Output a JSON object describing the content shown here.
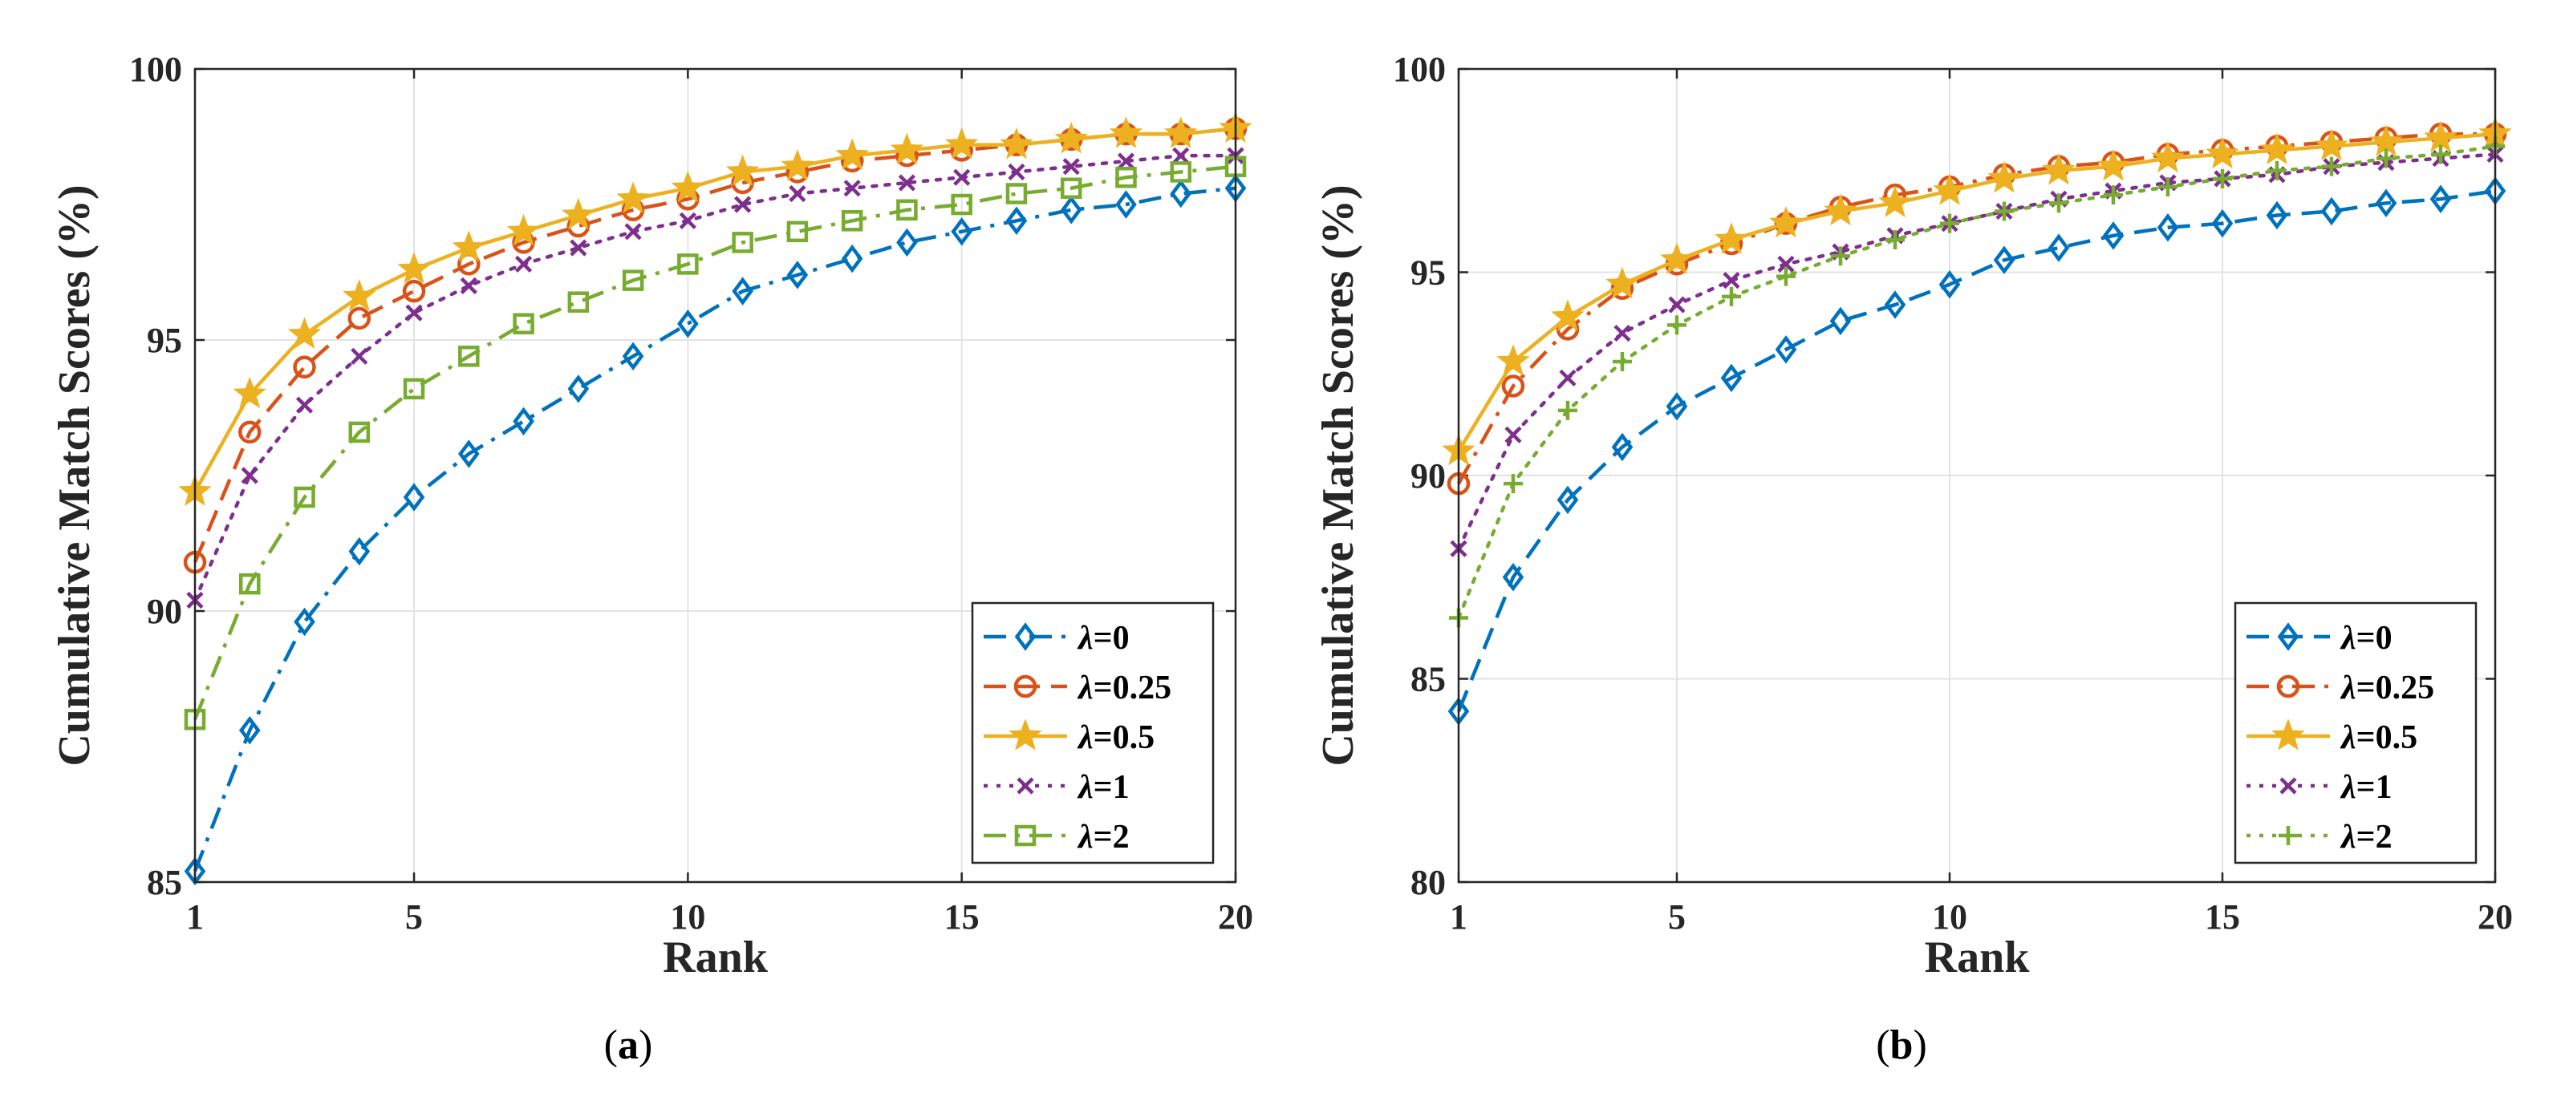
{
  "chart_data": [
    {
      "type": "line",
      "caption_letter": "a",
      "xlabel": "Rank",
      "ylabel": "Cumulative Match Scores (%)",
      "xlim": [
        1,
        20
      ],
      "ylim": [
        85,
        100
      ],
      "xticks": [
        1,
        5,
        10,
        15,
        20
      ],
      "yticks": [
        85,
        90,
        95,
        100
      ],
      "xtick_labels": [
        "1",
        "5",
        "10",
        "15",
        "20"
      ],
      "ytick_labels": [
        "85",
        "90",
        "95",
        "100"
      ],
      "grid": true,
      "legend_position": "bottom-right",
      "x": [
        1,
        2,
        3,
        4,
        5,
        6,
        7,
        8,
        9,
        10,
        11,
        12,
        13,
        14,
        15,
        16,
        17,
        18,
        19,
        20
      ],
      "series": [
        {
          "name": "λ=0",
          "symbol": "λ",
          "label_suffix": "=0",
          "color": "#0072BD",
          "dash": "dashdot",
          "marker": "diamond",
          "values": [
            85.2,
            87.8,
            89.8,
            91.1,
            92.1,
            92.9,
            93.5,
            94.1,
            94.7,
            95.3,
            95.9,
            96.2,
            96.5,
            96.8,
            97.0,
            97.2,
            97.4,
            97.5,
            97.7,
            97.8
          ]
        },
        {
          "name": "λ=0.25",
          "symbol": "λ",
          "label_suffix": "=0.25",
          "color": "#D95319",
          "dash": "dashed",
          "marker": "circle",
          "values": [
            90.9,
            93.3,
            94.5,
            95.4,
            95.9,
            96.4,
            96.8,
            97.1,
            97.4,
            97.6,
            97.9,
            98.1,
            98.3,
            98.4,
            98.5,
            98.6,
            98.7,
            98.8,
            98.8,
            98.9
          ]
        },
        {
          "name": "λ=0.5",
          "symbol": "λ",
          "label_suffix": "=0.5",
          "color": "#EDB120",
          "dash": "solid",
          "marker": "star",
          "values": [
            92.2,
            94.0,
            95.1,
            95.8,
            96.3,
            96.7,
            97.0,
            97.3,
            97.6,
            97.8,
            98.1,
            98.2,
            98.4,
            98.5,
            98.6,
            98.6,
            98.7,
            98.8,
            98.8,
            98.9
          ]
        },
        {
          "name": "λ=1",
          "symbol": "λ",
          "label_suffix": "=1",
          "color": "#7E2F8E",
          "dash": "dotted",
          "marker": "x",
          "values": [
            90.2,
            92.5,
            93.8,
            94.7,
            95.5,
            96.0,
            96.4,
            96.7,
            97.0,
            97.2,
            97.5,
            97.7,
            97.8,
            97.9,
            98.0,
            98.1,
            98.2,
            98.3,
            98.4,
            98.4
          ]
        },
        {
          "name": "λ=2",
          "symbol": "λ",
          "label_suffix": "=2",
          "color": "#77AC30",
          "dash": "dashdot",
          "marker": "square",
          "values": [
            88.0,
            90.5,
            92.1,
            93.3,
            94.1,
            94.7,
            95.3,
            95.7,
            96.1,
            96.4,
            96.8,
            97.0,
            97.2,
            97.4,
            97.5,
            97.7,
            97.8,
            98.0,
            98.1,
            98.2
          ]
        }
      ]
    },
    {
      "type": "line",
      "caption_letter": "b",
      "xlabel": "Rank",
      "ylabel": "Cumulative Match Scores (%)",
      "xlim": [
        1,
        20
      ],
      "ylim": [
        80,
        100
      ],
      "xticks": [
        1,
        5,
        10,
        15,
        20
      ],
      "yticks": [
        80,
        85,
        90,
        95,
        100
      ],
      "xtick_labels": [
        "1",
        "5",
        "10",
        "15",
        "20"
      ],
      "ytick_labels": [
        "80",
        "85",
        "90",
        "95",
        "100"
      ],
      "grid": true,
      "legend_position": "bottom-right",
      "x": [
        1,
        2,
        3,
        4,
        5,
        6,
        7,
        8,
        9,
        10,
        11,
        12,
        13,
        14,
        15,
        16,
        17,
        18,
        19,
        20
      ],
      "series": [
        {
          "name": "λ=0",
          "symbol": "λ",
          "label_suffix": "=0",
          "color": "#0072BD",
          "dash": "dashed",
          "marker": "diamond",
          "values": [
            84.2,
            87.5,
            89.4,
            90.7,
            91.7,
            92.4,
            93.1,
            93.8,
            94.2,
            94.7,
            95.3,
            95.6,
            95.9,
            96.1,
            96.2,
            96.4,
            96.5,
            96.7,
            96.8,
            97.0
          ]
        },
        {
          "name": "λ=0.25",
          "symbol": "λ",
          "label_suffix": "=0.25",
          "color": "#D95319",
          "dash": "dashdot",
          "marker": "circle",
          "values": [
            89.8,
            92.2,
            93.6,
            94.6,
            95.2,
            95.7,
            96.2,
            96.6,
            96.9,
            97.1,
            97.4,
            97.6,
            97.7,
            97.9,
            98.0,
            98.1,
            98.2,
            98.3,
            98.4,
            98.4
          ]
        },
        {
          "name": "λ=0.5",
          "symbol": "λ",
          "label_suffix": "=0.5",
          "color": "#EDB120",
          "dash": "solid",
          "marker": "star",
          "values": [
            90.6,
            92.8,
            93.9,
            94.7,
            95.3,
            95.8,
            96.2,
            96.5,
            96.7,
            97.0,
            97.3,
            97.5,
            97.6,
            97.8,
            97.9,
            98.0,
            98.1,
            98.2,
            98.3,
            98.4
          ]
        },
        {
          "name": "λ=1",
          "symbol": "λ",
          "label_suffix": "=1",
          "color": "#7E2F8E",
          "dash": "dotted",
          "marker": "x",
          "values": [
            88.2,
            91.0,
            92.4,
            93.5,
            94.2,
            94.8,
            95.2,
            95.5,
            95.9,
            96.2,
            96.5,
            96.8,
            97.0,
            97.2,
            97.3,
            97.4,
            97.6,
            97.7,
            97.8,
            97.9
          ]
        },
        {
          "name": "λ=2",
          "symbol": "λ",
          "label_suffix": "=2",
          "color": "#77AC30",
          "dash": "dotted",
          "marker": "plus",
          "values": [
            86.5,
            89.8,
            91.6,
            92.8,
            93.7,
            94.4,
            94.9,
            95.4,
            95.8,
            96.2,
            96.5,
            96.7,
            96.9,
            97.1,
            97.3,
            97.5,
            97.6,
            97.8,
            97.9,
            98.1
          ]
        }
      ]
    }
  ]
}
